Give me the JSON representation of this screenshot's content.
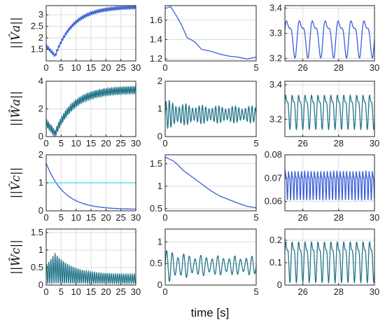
{
  "xlabel": "time [s]",
  "row_labels": [
    "||V̂a||",
    "||Ŵa||",
    "||V̂c||",
    "||Ŵc||"
  ],
  "colors": {
    "main": "#3a5fd9",
    "teal": "#23758a",
    "cyan": "#3fd9e6",
    "axis": "#262626",
    "grid": "#dcdcdc"
  },
  "chart_data": [
    {
      "type": "line",
      "row": 0,
      "col": 0,
      "xlim": [
        0,
        30
      ],
      "ylim": [
        1,
        3.4
      ],
      "xticks": [
        "0",
        "5",
        "10",
        "15",
        "20",
        "25",
        "30"
      ],
      "xtick_values": [
        0,
        5,
        10,
        15,
        20,
        25,
        30
      ],
      "yticks": [
        "1.5",
        "2",
        "2.5",
        "3"
      ],
      "ytick_values": [
        1.5,
        2,
        2.5,
        3
      ],
      "series": [
        {
          "style": "growth",
          "start": 1.65,
          "min": 1.22,
          "min_x": 3,
          "end": 3.35,
          "band": 0.07,
          "color": "#3a5fd9"
        }
      ]
    },
    {
      "type": "line",
      "row": 0,
      "col": 1,
      "xlim": [
        0,
        5
      ],
      "ylim": [
        1.18,
        1.75
      ],
      "xticks": [
        "0",
        "5"
      ],
      "xtick_values": [
        0,
        5
      ],
      "yticks": [
        "1.2",
        "1.4",
        "1.6"
      ],
      "ytick_values": [
        1.2,
        1.4,
        1.6
      ],
      "series": [
        {
          "style": "decay",
          "x": [
            0,
            0.3,
            0.6,
            0.9,
            1.2,
            1.6,
            2,
            2.5,
            3,
            3.5,
            4,
            4.5,
            5
          ],
          "y": [
            1.72,
            1.74,
            1.65,
            1.55,
            1.42,
            1.38,
            1.3,
            1.28,
            1.25,
            1.23,
            1.22,
            1.2,
            1.22
          ],
          "color": "#3a5fd9"
        }
      ]
    },
    {
      "type": "line",
      "row": 0,
      "col": 2,
      "xlim": [
        25,
        30
      ],
      "ylim": [
        3.19,
        3.41
      ],
      "xticks": [
        "26",
        "28",
        "30"
      ],
      "xtick_values": [
        26,
        28,
        30
      ],
      "yticks": [
        "3.2",
        "3.3",
        "3.4"
      ],
      "ytick_values": [
        3.2,
        3.3,
        3.4
      ],
      "series": [
        {
          "style": "periodic",
          "mean": 3.29,
          "amp": 0.09,
          "period": 0.72,
          "color": "#3a5fd9"
        }
      ]
    },
    {
      "type": "line",
      "row": 1,
      "col": 0,
      "xlim": [
        0,
        30
      ],
      "ylim": [
        0,
        4
      ],
      "xticks": [
        "0",
        "5",
        "10",
        "15",
        "20",
        "25",
        "30"
      ],
      "xtick_values": [
        0,
        5,
        10,
        15,
        20,
        25,
        30
      ],
      "yticks": [
        "0",
        "2",
        "4"
      ],
      "ytick_values": [
        0,
        2,
        4
      ],
      "series": [
        {
          "style": "growth",
          "start": 1.0,
          "min": 0.2,
          "min_x": 3,
          "end": 3.4,
          "band": 0.25,
          "color": "#23758a"
        }
      ]
    },
    {
      "type": "line",
      "row": 1,
      "col": 1,
      "xlim": [
        0,
        5
      ],
      "ylim": [
        0,
        2
      ],
      "xticks": [
        "0",
        "5"
      ],
      "xtick_values": [
        0,
        5
      ],
      "yticks": [
        "0",
        "1",
        "2"
      ],
      "ytick_values": [
        0,
        1,
        2
      ],
      "series": [
        {
          "style": "oscillating",
          "mean": 0.8,
          "amp": 0.55,
          "freq": 5.5,
          "color": "#23758a"
        }
      ]
    },
    {
      "type": "line",
      "row": 1,
      "col": 2,
      "xlim": [
        25,
        30
      ],
      "ylim": [
        3.1,
        3.42
      ],
      "xticks": [
        "26",
        "28",
        "30"
      ],
      "xtick_values": [
        26,
        28,
        30
      ],
      "yticks": [
        "3.2",
        "3.4"
      ],
      "ytick_values": [
        3.2,
        3.4
      ],
      "series": [
        {
          "style": "periodic",
          "mean": 3.26,
          "amp": 0.12,
          "period": 0.36,
          "color": "#23758a"
        }
      ]
    },
    {
      "type": "line",
      "row": 2,
      "col": 0,
      "xlim": [
        0,
        30
      ],
      "ylim": [
        0,
        2
      ],
      "xticks": [
        "0",
        "5",
        "10",
        "15",
        "20",
        "25",
        "30"
      ],
      "xtick_values": [
        0,
        5,
        10,
        15,
        20,
        25,
        30
      ],
      "yticks": [
        "0",
        "1",
        "2"
      ],
      "ytick_values": [
        0,
        1,
        2
      ],
      "series": [
        {
          "style": "exp",
          "start": 1.7,
          "end": 0.05,
          "tau": 6,
          "color": "#3a5fd9"
        },
        {
          "style": "flat",
          "y": 1.0,
          "color": "#3fd9e6"
        }
      ]
    },
    {
      "type": "line",
      "row": 2,
      "col": 1,
      "xlim": [
        0,
        5
      ],
      "ylim": [
        0.45,
        1.7
      ],
      "xticks": [
        "0",
        "5"
      ],
      "xtick_values": [
        0,
        5
      ],
      "yticks": [
        "0.5",
        "1",
        "1.5"
      ],
      "ytick_values": [
        0.5,
        1,
        1.5
      ],
      "series": [
        {
          "style": "decay",
          "x": [
            0,
            0.5,
            1,
            1.5,
            2,
            2.5,
            3,
            3.5,
            4,
            4.5,
            5
          ],
          "y": [
            1.65,
            1.55,
            1.35,
            1.2,
            1.05,
            0.9,
            0.78,
            0.7,
            0.62,
            0.55,
            0.52
          ],
          "color": "#3a5fd9"
        }
      ]
    },
    {
      "type": "line",
      "row": 2,
      "col": 2,
      "xlim": [
        25,
        30
      ],
      "ylim": [
        0.056,
        0.08
      ],
      "xticks": [
        "26",
        "28",
        "30"
      ],
      "xtick_values": [
        26,
        28,
        30
      ],
      "yticks": [
        "0.06",
        "0.07",
        "0.08"
      ],
      "ytick_values": [
        0.06,
        0.07,
        0.08
      ],
      "series": [
        {
          "style": "periodic",
          "mean": 0.068,
          "amp": 0.0075,
          "period": 0.18,
          "color": "#3a5fd9"
        }
      ]
    },
    {
      "type": "line",
      "row": 3,
      "col": 0,
      "xlim": [
        0,
        30
      ],
      "ylim": [
        0,
        1.6
      ],
      "xticks": [
        "0",
        "5",
        "10",
        "15",
        "20",
        "25",
        "30"
      ],
      "xtick_values": [
        0,
        5,
        10,
        15,
        20,
        25,
        30
      ],
      "yticks": [
        "0",
        "0.5",
        "1",
        "1.5"
      ],
      "ytick_values": [
        0,
        0.5,
        1,
        1.5
      ],
      "series": [
        {
          "style": "envelope",
          "peak": 0.85,
          "peak_x": 3,
          "end": 0.25,
          "color": "#23758a"
        }
      ]
    },
    {
      "type": "line",
      "row": 3,
      "col": 1,
      "xlim": [
        0,
        5
      ],
      "ylim": [
        0,
        1.3
      ],
      "xticks": [
        "0",
        "5"
      ],
      "xtick_values": [
        0,
        5
      ],
      "yticks": [
        "0",
        "0.5",
        "1"
      ],
      "ytick_values": [
        0,
        0.5,
        1
      ],
      "series": [
        {
          "style": "oscillating",
          "mean": 0.45,
          "amp": 0.4,
          "freq": 3.2,
          "color": "#23758a"
        }
      ]
    },
    {
      "type": "line",
      "row": 3,
      "col": 2,
      "xlim": [
        25,
        30
      ],
      "ylim": [
        0,
        0.25
      ],
      "xticks": [
        "26",
        "28",
        "30"
      ],
      "xtick_values": [
        26,
        28,
        30
      ],
      "yticks": [
        "0",
        "0.1",
        "0.2"
      ],
      "ytick_values": [
        0,
        0.1,
        0.2
      ],
      "series": [
        {
          "style": "periodic",
          "mean": 0.12,
          "amp": 0.11,
          "period": 0.36,
          "color": "#23758a"
        }
      ]
    }
  ]
}
